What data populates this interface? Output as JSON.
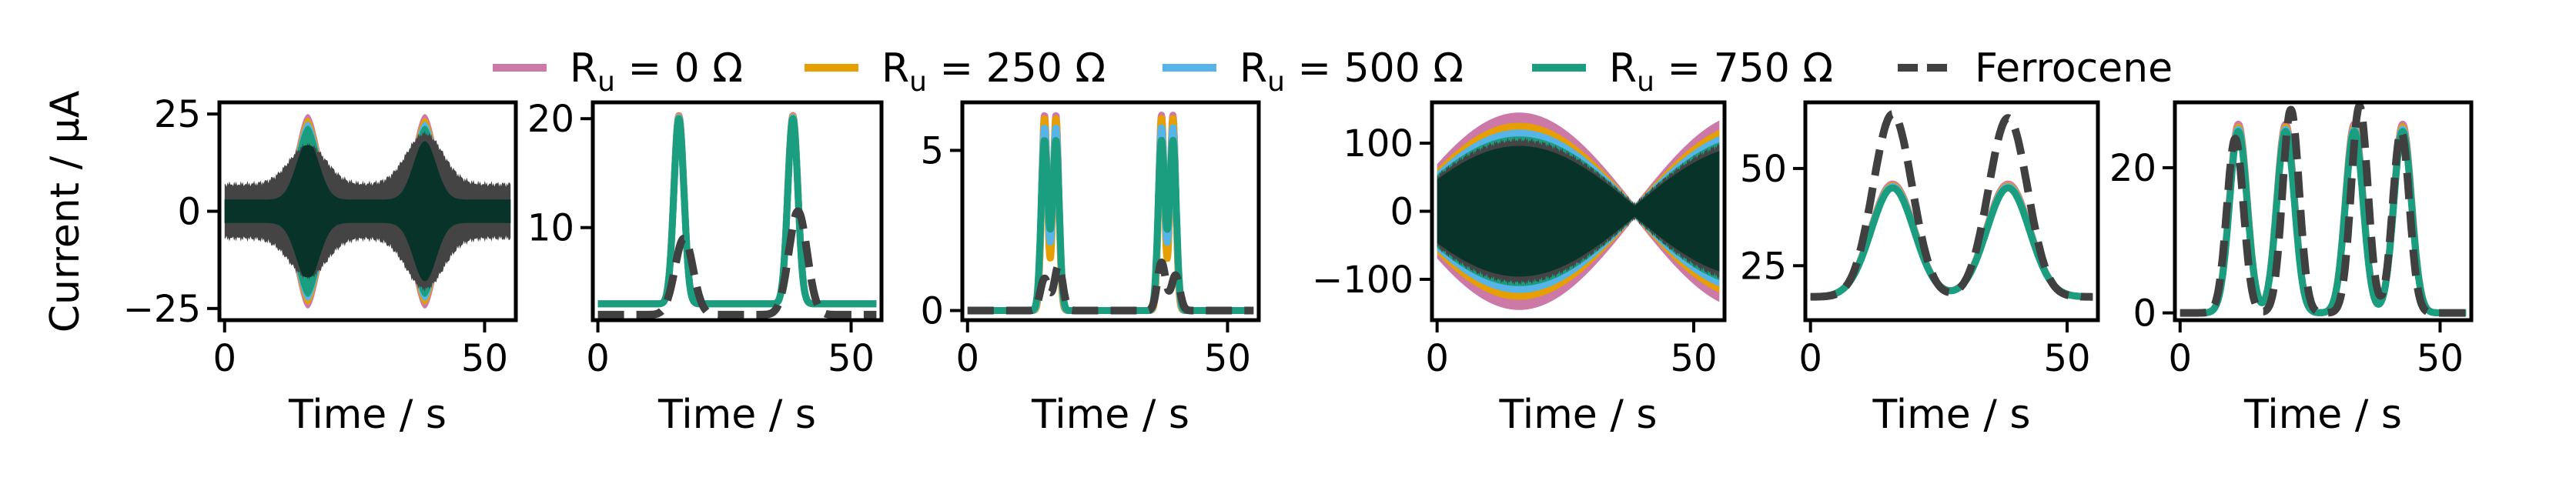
{
  "legend": {
    "placement": "top-center",
    "entries": [
      {
        "key": "r0",
        "label": "R",
        "sub": "u",
        "rest": " = 0 Ω",
        "color": "#cc79a7",
        "dash": "solid"
      },
      {
        "key": "r250",
        "label": "R",
        "sub": "u",
        "rest": " = 250 Ω",
        "color": "#e69f00",
        "dash": "solid"
      },
      {
        "key": "r500",
        "label": "R",
        "sub": "u",
        "rest": " = 500 Ω",
        "color": "#56b4e9",
        "dash": "solid"
      },
      {
        "key": "r750",
        "label": "R",
        "sub": "u",
        "rest": " = 750 Ω",
        "color": "#1a9e7f",
        "dash": "solid"
      },
      {
        "key": "fc",
        "label": "Ferrocene",
        "sub": "",
        "rest": "",
        "color": "#404040",
        "dash": "dashed"
      }
    ]
  },
  "ylabel": "Current / μA",
  "chart_data": [
    {
      "type": "line",
      "id": "p1",
      "xlabel": "Time / s",
      "xlim": [
        -1,
        56
      ],
      "ylim": [
        -28,
        28
      ],
      "xticks": [
        0,
        50
      ],
      "yticks": [
        -25,
        0,
        25
      ],
      "style": "oscillation",
      "series": [
        {
          "key": "r0",
          "envelope": {
            "base": 3,
            "peaks": [
              {
                "center": 16,
                "width": 2.2,
                "amp": 22
              },
              {
                "center": 38.5,
                "width": 2.2,
                "amp": 22
              }
            ]
          }
        },
        {
          "key": "r250",
          "envelope": {
            "base": 3,
            "peaks": [
              {
                "center": 16,
                "width": 2.2,
                "amp": 21
              },
              {
                "center": 38.5,
                "width": 2.2,
                "amp": 21
              }
            ]
          }
        },
        {
          "key": "r500",
          "envelope": {
            "base": 3,
            "peaks": [
              {
                "center": 16,
                "width": 2.2,
                "amp": 20
              },
              {
                "center": 38.5,
                "width": 2.2,
                "amp": 20
              }
            ]
          }
        },
        {
          "key": "r750",
          "envelope": {
            "base": 3,
            "peaks": [
              {
                "center": 16,
                "width": 2.2,
                "amp": 19
              },
              {
                "center": 38.5,
                "width": 2.2,
                "amp": 19
              }
            ]
          }
        },
        {
          "key": "fc",
          "envelope": {
            "base": 7,
            "peaks": [
              {
                "center": 16,
                "width": 3.5,
                "amp": 10
              },
              {
                "center": 38.5,
                "width": 3.5,
                "amp": 13
              }
            ]
          }
        }
      ]
    },
    {
      "type": "line",
      "id": "p2",
      "xlabel": "Time / s",
      "xlim": [
        -1,
        56
      ],
      "ylim": [
        1.5,
        21.5
      ],
      "xticks": [
        0,
        50
      ],
      "yticks": [
        10,
        20
      ],
      "style": "lines",
      "series": [
        {
          "key": "r0",
          "base": 3,
          "peaks": [
            {
              "center": 16,
              "width": 1.0,
              "amp": 17.3
            },
            {
              "center": 38.5,
              "width": 1.0,
              "amp": 17.3
            }
          ]
        },
        {
          "key": "r250",
          "base": 3,
          "peaks": [
            {
              "center": 16,
              "width": 1.0,
              "amp": 17.2
            },
            {
              "center": 38.5,
              "width": 1.0,
              "amp": 17.2
            }
          ]
        },
        {
          "key": "r500",
          "base": 3,
          "peaks": [
            {
              "center": 16,
              "width": 1.0,
              "amp": 17.1
            },
            {
              "center": 38.5,
              "width": 1.0,
              "amp": 17.1
            }
          ]
        },
        {
          "key": "r750",
          "base": 3,
          "peaks": [
            {
              "center": 16,
              "width": 1.0,
              "amp": 17.0
            },
            {
              "center": 38.5,
              "width": 1.0,
              "amp": 17.0
            }
          ]
        },
        {
          "key": "fc",
          "base": 2,
          "peaks": [
            {
              "center": 17,
              "width": 1.8,
              "amp": 7
            },
            {
              "center": 39.5,
              "width": 1.8,
              "amp": 9.5
            }
          ]
        }
      ]
    },
    {
      "type": "line",
      "id": "p3",
      "xlabel": "Time / s",
      "xlim": [
        -1,
        56
      ],
      "ylim": [
        -0.3,
        6.5
      ],
      "xticks": [
        0,
        50
      ],
      "yticks": [
        0,
        5
      ],
      "style": "lines",
      "series": [
        {
          "key": "r0",
          "base": 0,
          "peaks": [
            {
              "center": 14.8,
              "width": 0.55,
              "amp": 6.1
            },
            {
              "center": 17.0,
              "width": 0.55,
              "amp": 6.1
            },
            {
              "center": 37.3,
              "width": 0.55,
              "amp": 6.1
            },
            {
              "center": 39.5,
              "width": 0.55,
              "amp": 6.1
            }
          ]
        },
        {
          "key": "r250",
          "base": 0,
          "peaks": [
            {
              "center": 14.8,
              "width": 0.55,
              "amp": 6.0
            },
            {
              "center": 17.0,
              "width": 0.55,
              "amp": 6.0
            },
            {
              "center": 37.3,
              "width": 0.55,
              "amp": 6.0
            },
            {
              "center": 39.5,
              "width": 0.55,
              "amp": 6.0
            }
          ]
        },
        {
          "key": "r500",
          "base": 0,
          "peaks": [
            {
              "center": 14.8,
              "width": 0.6,
              "amp": 5.7
            },
            {
              "center": 17.0,
              "width": 0.6,
              "amp": 5.7
            },
            {
              "center": 37.3,
              "width": 0.6,
              "amp": 5.7
            },
            {
              "center": 39.5,
              "width": 0.6,
              "amp": 5.7
            }
          ]
        },
        {
          "key": "r750",
          "base": 0,
          "peaks": [
            {
              "center": 14.8,
              "width": 0.65,
              "amp": 5.3
            },
            {
              "center": 17.0,
              "width": 0.65,
              "amp": 5.3
            },
            {
              "center": 37.3,
              "width": 0.65,
              "amp": 5.3
            },
            {
              "center": 39.5,
              "width": 0.65,
              "amp": 5.3
            }
          ]
        },
        {
          "key": "fc",
          "base": 0,
          "peaks": [
            {
              "center": 14.8,
              "width": 0.8,
              "amp": 1.0
            },
            {
              "center": 17.5,
              "width": 0.8,
              "amp": 1.4
            },
            {
              "center": 37.3,
              "width": 0.8,
              "amp": 1.5
            },
            {
              "center": 40.0,
              "width": 0.8,
              "amp": 1.1
            }
          ]
        }
      ]
    },
    {
      "type": "line",
      "id": "p4",
      "xlabel": "Time / s",
      "xlim": [
        -1,
        56
      ],
      "ylim": [
        -160,
        160
      ],
      "xticks": [
        0,
        50
      ],
      "yticks": [
        -100,
        0,
        100
      ],
      "style": "oscillation-sine",
      "series": [
        {
          "key": "r0",
          "envelope": {
            "base": 10,
            "amp": 135,
            "period": 45
          }
        },
        {
          "key": "r250",
          "envelope": {
            "base": 10,
            "amp": 120,
            "period": 45
          }
        },
        {
          "key": "r500",
          "envelope": {
            "base": 10,
            "amp": 110,
            "period": 45
          }
        },
        {
          "key": "r750",
          "envelope": {
            "base": 10,
            "amp": 100,
            "period": 45
          }
        },
        {
          "key": "fc",
          "envelope": {
            "base": 10,
            "amp": 95,
            "period": 45
          }
        }
      ]
    },
    {
      "type": "line",
      "id": "p5",
      "xlabel": "Time / s",
      "xlim": [
        -1,
        56
      ],
      "ylim": [
        11,
        67
      ],
      "xticks": [
        0,
        50
      ],
      "yticks": [
        25,
        50
      ],
      "style": "lines",
      "series": [
        {
          "key": "r0",
          "base": 17,
          "peaks": [
            {
              "center": 16,
              "width": 4.2,
              "amp": 29
            },
            {
              "center": 38.5,
              "width": 4.2,
              "amp": 29
            }
          ]
        },
        {
          "key": "r250",
          "base": 17,
          "peaks": [
            {
              "center": 16,
              "width": 4.2,
              "amp": 28.6
            },
            {
              "center": 38.5,
              "width": 4.2,
              "amp": 28.6
            }
          ]
        },
        {
          "key": "r500",
          "base": 17,
          "peaks": [
            {
              "center": 16,
              "width": 4.2,
              "amp": 28.3
            },
            {
              "center": 38.5,
              "width": 4.2,
              "amp": 28.3
            }
          ]
        },
        {
          "key": "r750",
          "base": 17,
          "peaks": [
            {
              "center": 16,
              "width": 4.2,
              "amp": 28
            },
            {
              "center": 38.5,
              "width": 4.2,
              "amp": 28
            }
          ]
        },
        {
          "key": "fc",
          "base": 17,
          "peaks": [
            {
              "center": 16,
              "width": 3.8,
              "amp": 47
            },
            {
              "center": 38.5,
              "width": 3.8,
              "amp": 46
            }
          ]
        }
      ]
    },
    {
      "type": "line",
      "id": "p6",
      "xlabel": "Time / s",
      "xlim": [
        -1,
        56
      ],
      "ylim": [
        -1,
        29
      ],
      "xticks": [
        0,
        50
      ],
      "yticks": [
        0,
        20
      ],
      "style": "lines",
      "series": [
        {
          "key": "r0",
          "base": 0,
          "peaks": [
            {
              "center": 11.2,
              "width": 1.7,
              "amp": 26
            },
            {
              "center": 20.3,
              "width": 1.7,
              "amp": 26
            },
            {
              "center": 33.5,
              "width": 1.7,
              "amp": 26
            },
            {
              "center": 42.8,
              "width": 1.7,
              "amp": 26
            }
          ]
        },
        {
          "key": "r250",
          "base": 0,
          "peaks": [
            {
              "center": 11.2,
              "width": 1.7,
              "amp": 25.6
            },
            {
              "center": 20.3,
              "width": 1.7,
              "amp": 25.6
            },
            {
              "center": 33.5,
              "width": 1.7,
              "amp": 25.6
            },
            {
              "center": 42.8,
              "width": 1.7,
              "amp": 25.6
            }
          ]
        },
        {
          "key": "r500",
          "base": 0,
          "peaks": [
            {
              "center": 11.2,
              "width": 1.7,
              "amp": 25.3
            },
            {
              "center": 20.3,
              "width": 1.7,
              "amp": 25.3
            },
            {
              "center": 33.5,
              "width": 1.7,
              "amp": 25.3
            },
            {
              "center": 42.8,
              "width": 1.7,
              "amp": 25.3
            }
          ]
        },
        {
          "key": "r750",
          "base": 0,
          "peaks": [
            {
              "center": 11.2,
              "width": 1.7,
              "amp": 25
            },
            {
              "center": 20.3,
              "width": 1.7,
              "amp": 25
            },
            {
              "center": 33.5,
              "width": 1.7,
              "amp": 25
            },
            {
              "center": 42.8,
              "width": 1.7,
              "amp": 25
            }
          ]
        },
        {
          "key": "fc",
          "base": 0,
          "peaks": [
            {
              "center": 10.6,
              "width": 1.6,
              "amp": 24
            },
            {
              "center": 21.3,
              "width": 1.6,
              "amp": 28
            },
            {
              "center": 34.5,
              "width": 1.6,
              "amp": 28.5
            },
            {
              "center": 42.5,
              "width": 1.6,
              "amp": 25
            }
          ]
        }
      ]
    }
  ]
}
